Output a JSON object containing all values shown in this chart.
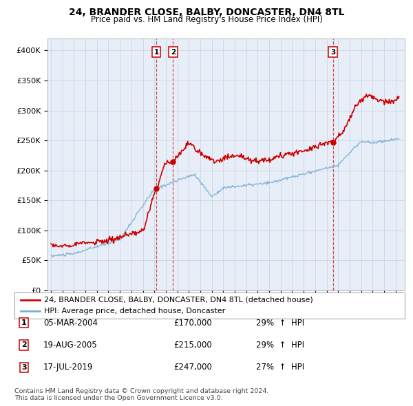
{
  "title": "24, BRANDER CLOSE, BALBY, DONCASTER, DN4 8TL",
  "subtitle": "Price paid vs. HM Land Registry's House Price Index (HPI)",
  "ylim": [
    0,
    420000
  ],
  "yticks": [
    0,
    50000,
    100000,
    150000,
    200000,
    250000,
    300000,
    350000,
    400000
  ],
  "ytick_labels": [
    "£0",
    "£50K",
    "£100K",
    "£150K",
    "£200K",
    "£250K",
    "£300K",
    "£350K",
    "£400K"
  ],
  "red_line_color": "#cc0000",
  "blue_line_color": "#7ab0d4",
  "sale_points": [
    {
      "label": "1",
      "date_str": "05-MAR-2004",
      "year": 2004.17,
      "price": 170000,
      "pct": "29%",
      "direction": "↑"
    },
    {
      "label": "2",
      "date_str": "19-AUG-2005",
      "year": 2005.63,
      "price": 215000,
      "pct": "29%",
      "direction": "↑"
    },
    {
      "label": "3",
      "date_str": "17-JUL-2019",
      "year": 2019.54,
      "price": 247000,
      "pct": "27%",
      "direction": "↑"
    }
  ],
  "legend_red_label": "24, BRANDER CLOSE, BALBY, DONCASTER, DN4 8TL (detached house)",
  "legend_blue_label": "HPI: Average price, detached house, Doncaster",
  "footnote": "Contains HM Land Registry data © Crown copyright and database right 2024.\nThis data is licensed under the Open Government Licence v3.0.",
  "chart_bg": "#e8eef8",
  "fig_bg": "#ffffff"
}
